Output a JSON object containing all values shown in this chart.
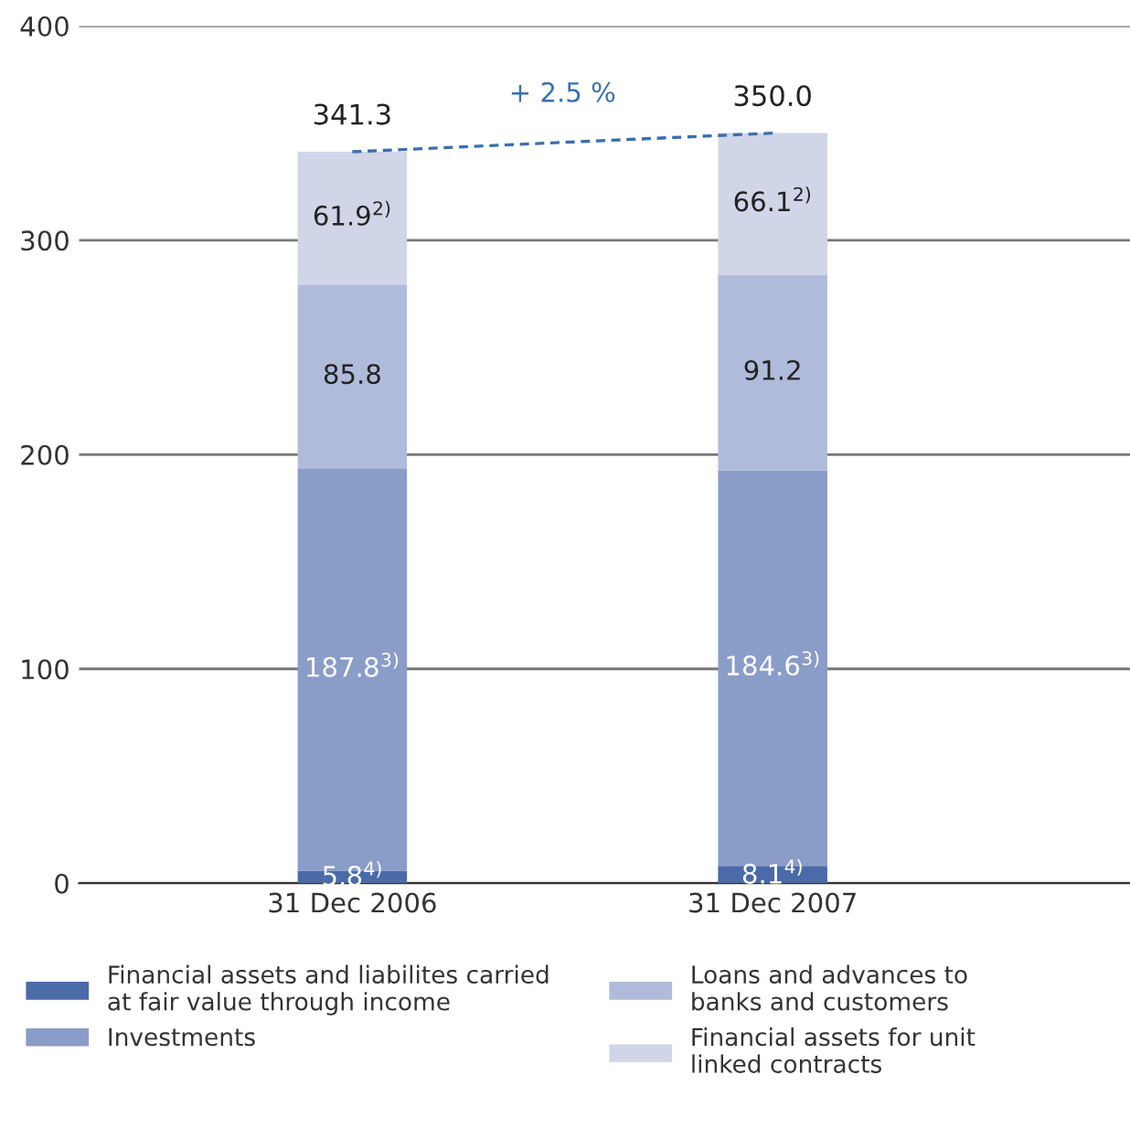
{
  "chart_data": {
    "type": "bar",
    "stacked": true,
    "categories": [
      "31 Dec 2006",
      "31 Dec 2007"
    ],
    "series": [
      {
        "name": "Financial assets and liabilites carried\nat fair value through income",
        "color": "#4a6aa8",
        "values": [
          5.8,
          8.1
        ],
        "value_labels": [
          "5.8$^{4)}$",
          "8.1$^{4)}$"
        ]
      },
      {
        "name": "Investments",
        "color": "#8a9cc8",
        "values": [
          187.8,
          184.6
        ],
        "value_labels": [
          "187.8$^{3)}$",
          "184.6$^{3)}$"
        ]
      },
      {
        "name": "Loans and advances to\nbanks and customers",
        "color": "#b0bbdb",
        "values": [
          85.8,
          91.2
        ],
        "value_labels": [
          "85.8",
          "91.2"
        ]
      },
      {
        "name": "Financial assets for unit\nlinked contracts",
        "color": "#d0d5e8",
        "values": [
          61.9,
          66.1
        ],
        "value_labels": [
          "61.9$^{2)}$",
          "66.1$^{2)}$"
        ]
      },
      {
        "type": "line",
        "color": "#3a6fb0",
        "line_style": "dashed",
        "values": [
          341.3,
          350.0
        ]
      }
    ],
    "totals": [
      "341.3",
      "350.0"
    ],
    "annotations": [
      "+ 2.5 %"
    ],
    "ylim": [
      0,
      400
    ],
    "yticks": [
      0,
      100,
      200,
      300,
      400
    ],
    "grid": "y",
    "legend": "bottom"
  }
}
